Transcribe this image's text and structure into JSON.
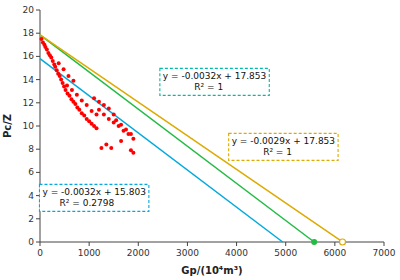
{
  "chart_data": {
    "type": "scatter",
    "xlabel": "Gp/(10⁴m³)",
    "ylabel": "Pc/Z",
    "xlim": [
      0,
      7000
    ],
    "ylim": [
      0,
      20
    ],
    "xticks": [
      0,
      1000,
      2000,
      3000,
      4000,
      5000,
      6000,
      7000
    ],
    "yticks": [
      0,
      2,
      4,
      6,
      8,
      10,
      12,
      14,
      16,
      18,
      20
    ],
    "grid": false,
    "series": [
      {
        "type": "scatter",
        "marker": "circle",
        "color": "#FF0000",
        "x": [
          30,
          60,
          90,
          110,
          140,
          170,
          200,
          230,
          260,
          290,
          310,
          340,
          370,
          400,
          430,
          460,
          490,
          520,
          560,
          600,
          640,
          680,
          720,
          760,
          800,
          850,
          900,
          950,
          1000,
          1050,
          1100,
          1150,
          550,
          650,
          750,
          850,
          950,
          1050,
          1150,
          1200,
          1300,
          1400,
          1500,
          1600,
          1700,
          1800,
          1900,
          1100,
          1200,
          1300,
          1400,
          1500,
          1550,
          1650,
          1750,
          1850,
          1850,
          1900,
          380,
          480,
          580,
          680,
          1250,
          1350,
          1450,
          1650
        ],
        "values": [
          17.5,
          17.2,
          17.0,
          16.8,
          16.6,
          16.3,
          16.1,
          15.9,
          15.6,
          15.3,
          15.1,
          14.8,
          14.5,
          14.3,
          14.0,
          13.7,
          13.4,
          13.1,
          12.8,
          12.6,
          12.3,
          12.1,
          11.9,
          11.6,
          11.4,
          11.1,
          10.9,
          10.6,
          10.4,
          10.2,
          10.0,
          9.8,
          13.5,
          13.1,
          12.7,
          12.2,
          11.8,
          11.3,
          11.0,
          11.4,
          11.0,
          10.6,
          10.3,
          10.0,
          9.6,
          9.3,
          8.9,
          12.4,
          12.1,
          11.8,
          11.5,
          11.0,
          10.5,
          10.1,
          9.7,
          9.3,
          7.9,
          7.7,
          15.4,
          14.9,
          14.3,
          13.9,
          8.1,
          8.4,
          8.1,
          8.7
        ]
      },
      {
        "type": "line",
        "color": "#00AADD",
        "x": [
          0,
          4938
        ],
        "values": [
          15.803,
          0.0014
        ]
      },
      {
        "type": "line",
        "color": "#22BB44",
        "x": [
          0,
          5579
        ],
        "values": [
          17.853,
          0.0002
        ]
      },
      {
        "type": "line",
        "color": "#DDAA00",
        "x": [
          0,
          6156
        ],
        "values": [
          17.853,
          0.0006
        ]
      },
      {
        "type": "scatter",
        "marker": "circle",
        "color": "#22BB44",
        "x": [
          5579
        ],
        "values": [
          0
        ]
      },
      {
        "type": "scatter",
        "marker": "circle-open",
        "color": "#DDAA00",
        "x": [
          6156
        ],
        "values": [
          0
        ]
      }
    ],
    "annotations": [
      {
        "text": "y = -0.0032x + 15.803\n      R² = 0.2798",
        "x": 50,
        "y": 3.8,
        "color": "#00AADD"
      },
      {
        "text": "y = -0.0032x + 17.853\n           R² = 1",
        "x": 2500,
        "y": 13.8,
        "color": "#00BBAA"
      },
      {
        "text": "y = -0.0029x + 17.853\n           R² = 1",
        "x": 3900,
        "y": 8.2,
        "color": "#DDAA00"
      }
    ]
  }
}
